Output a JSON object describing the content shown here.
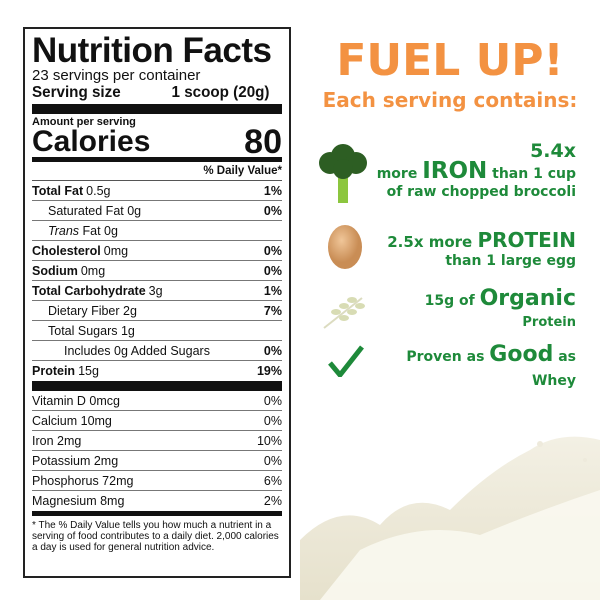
{
  "label": {
    "title": "Nutrition Facts",
    "servings": "23 servings per container",
    "serving_size_label": "Serving size",
    "serving_size_value": "1 scoop (20g)",
    "amount_per_serving": "Amount per serving",
    "calories_label": "Calories",
    "calories_value": "80",
    "dv_header": "% Daily Value*",
    "nutrients": [
      {
        "name": "Total Fat",
        "amount": "0.5g",
        "dv": "1%",
        "bold": true
      },
      {
        "name": "Saturated Fat 0g",
        "amount": "",
        "dv": "0%",
        "indent": 1
      },
      {
        "name": "Trans",
        "amount": " Fat 0g",
        "dv": "",
        "indent": 1,
        "italic": true
      },
      {
        "name": "Cholesterol",
        "amount": "0mg",
        "dv": "0%",
        "bold": true
      },
      {
        "name": "Sodium",
        "amount": "0mg",
        "dv": "0%",
        "bold": true
      },
      {
        "name": "Total Carbohydrate",
        "amount": "3g",
        "dv": "1%",
        "bold": true
      },
      {
        "name": "Dietary Fiber 2g",
        "amount": "",
        "dv": "7%",
        "indent": 1
      },
      {
        "name": "Total Sugars 1g",
        "amount": "",
        "dv": "",
        "indent": 1
      },
      {
        "name": "Includes 0g Added Sugars",
        "amount": "",
        "dv": "0%",
        "indent": 2
      },
      {
        "name": "Protein",
        "amount": "15g",
        "dv": "19%",
        "bold": true
      }
    ],
    "vitamins": [
      {
        "name": "Vitamin D 0mcg",
        "dv": "0%"
      },
      {
        "name": "Calcium 10mg",
        "dv": "0%"
      },
      {
        "name": "Iron 2mg",
        "dv": "10%"
      },
      {
        "name": "Potassium 2mg",
        "dv": "0%"
      },
      {
        "name": "Phosphorus 72mg",
        "dv": "6%"
      },
      {
        "name": "Magnesium 8mg",
        "dv": "2%"
      }
    ],
    "footnote": "* The % Daily Value tells you how much a nutrient in a serving of food contributes to a daily diet. 2,000 calories a day is used for general nutrition advice."
  },
  "promo": {
    "headline": "FUEL UP!",
    "subhead": "Each serving contains:",
    "claims": [
      {
        "icon": "broccoli-icon",
        "line1": "5.4x",
        "pre": "more ",
        "big": "IRON",
        "post": " than 1 cup",
        "line3": "of raw chopped broccoli"
      },
      {
        "icon": "egg-icon",
        "pre": "2.5x more ",
        "big": "PROTEIN",
        "line2": "than 1 large egg"
      },
      {
        "icon": "wheat-icon",
        "pre": "15g of ",
        "big": "Organic",
        "line2": "Protein"
      },
      {
        "icon": "checkmark-icon",
        "pre": "Proven as ",
        "big": "Good",
        "post": " as",
        "line2": "Whey"
      }
    ],
    "colors": {
      "orange": "#f39242",
      "green": "#1e8a3a"
    }
  }
}
